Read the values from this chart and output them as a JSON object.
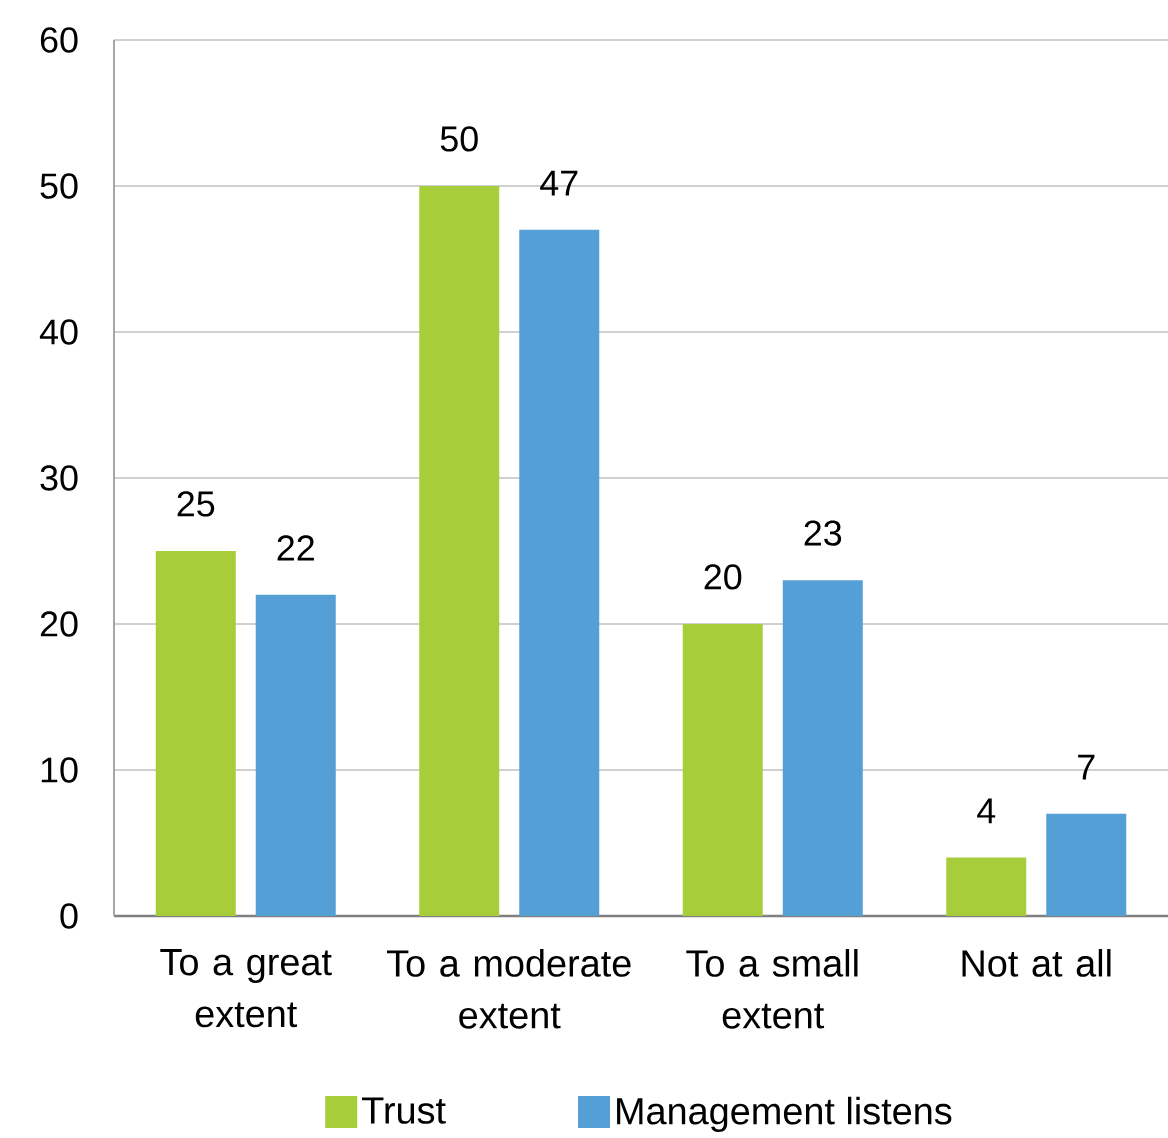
{
  "chart_data": {
    "type": "bar",
    "categories": [
      "To a great extent",
      "To a moderate extent",
      "To a small extent",
      "Not at all"
    ],
    "series": [
      {
        "name": "Trust",
        "color": "#a7cd3a",
        "values": [
          25,
          50,
          20,
          4
        ]
      },
      {
        "name": "Management listens",
        "color": "#559fd7",
        "values": [
          22,
          47,
          23,
          7
        ]
      }
    ],
    "ylim": [
      0,
      60
    ],
    "yticks": [
      0,
      10,
      20,
      30,
      40,
      50,
      60
    ],
    "grid": "y",
    "legend": "bottom",
    "data_labels": true
  }
}
